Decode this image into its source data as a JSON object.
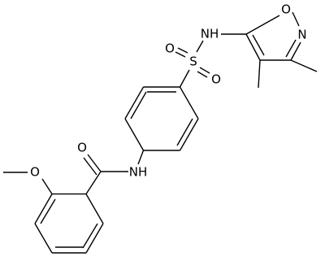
{
  "atoms": [
    "O",
    "N",
    "NH",
    "S",
    "O",
    "O",
    "NH",
    "O",
    "O"
  ]
}
